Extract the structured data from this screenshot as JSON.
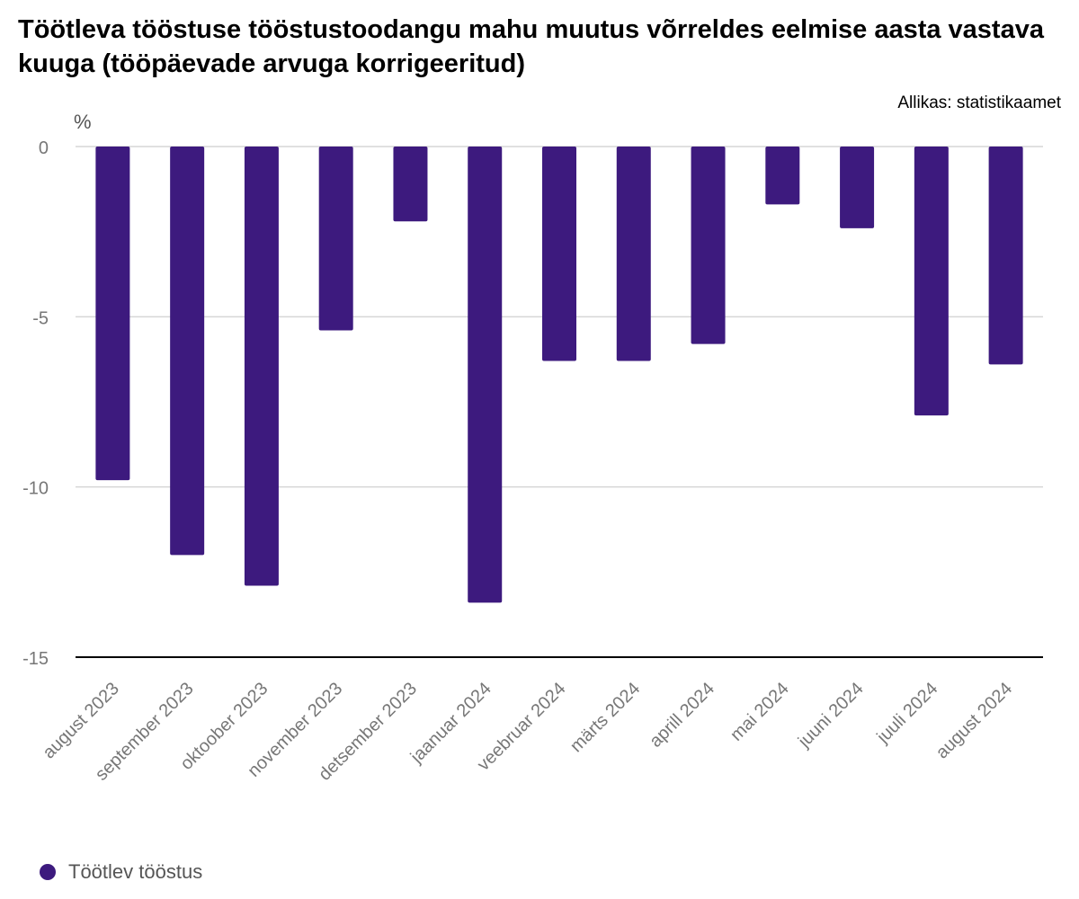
{
  "title": "Töötleva tööstuse tööstustoodangu mahu muutus võrreldes eelmise aasta vastava kuuga (tööpäevade arvuga korrigeeritud)",
  "source": "Allikas: statistikaamet",
  "colors": {
    "bar": "#3d1a7e",
    "grid": "#d6d6d6",
    "axis": "#000000",
    "tick_text": "#777777"
  },
  "chart_data": {
    "type": "bar",
    "title": "Töötleva tööstuse tööstustoodangu mahu muutus võrreldes eelmise aasta vastava kuuga (tööpäevade arvuga korrigeeritud)",
    "ylabel": "%",
    "ylim": [
      -15,
      0
    ],
    "yticks": [
      0,
      -5,
      -10,
      -15
    ],
    "grid": true,
    "legend_position": "bottom-left",
    "categories": [
      "august 2023",
      "september 2023",
      "oktoober 2023",
      "november 2023",
      "detsember 2023",
      "jaanuar 2024",
      "veebruar 2024",
      "märts 2024",
      "aprill 2024",
      "mai 2024",
      "juuni 2024",
      "juuli 2024",
      "august 2024"
    ],
    "series": [
      {
        "name": "Töötlev tööstus",
        "values": [
          -9.8,
          -12.0,
          -12.9,
          -5.4,
          -2.2,
          -13.4,
          -6.3,
          -6.3,
          -5.8,
          -1.7,
          -2.4,
          -7.9,
          -6.4
        ]
      }
    ]
  }
}
